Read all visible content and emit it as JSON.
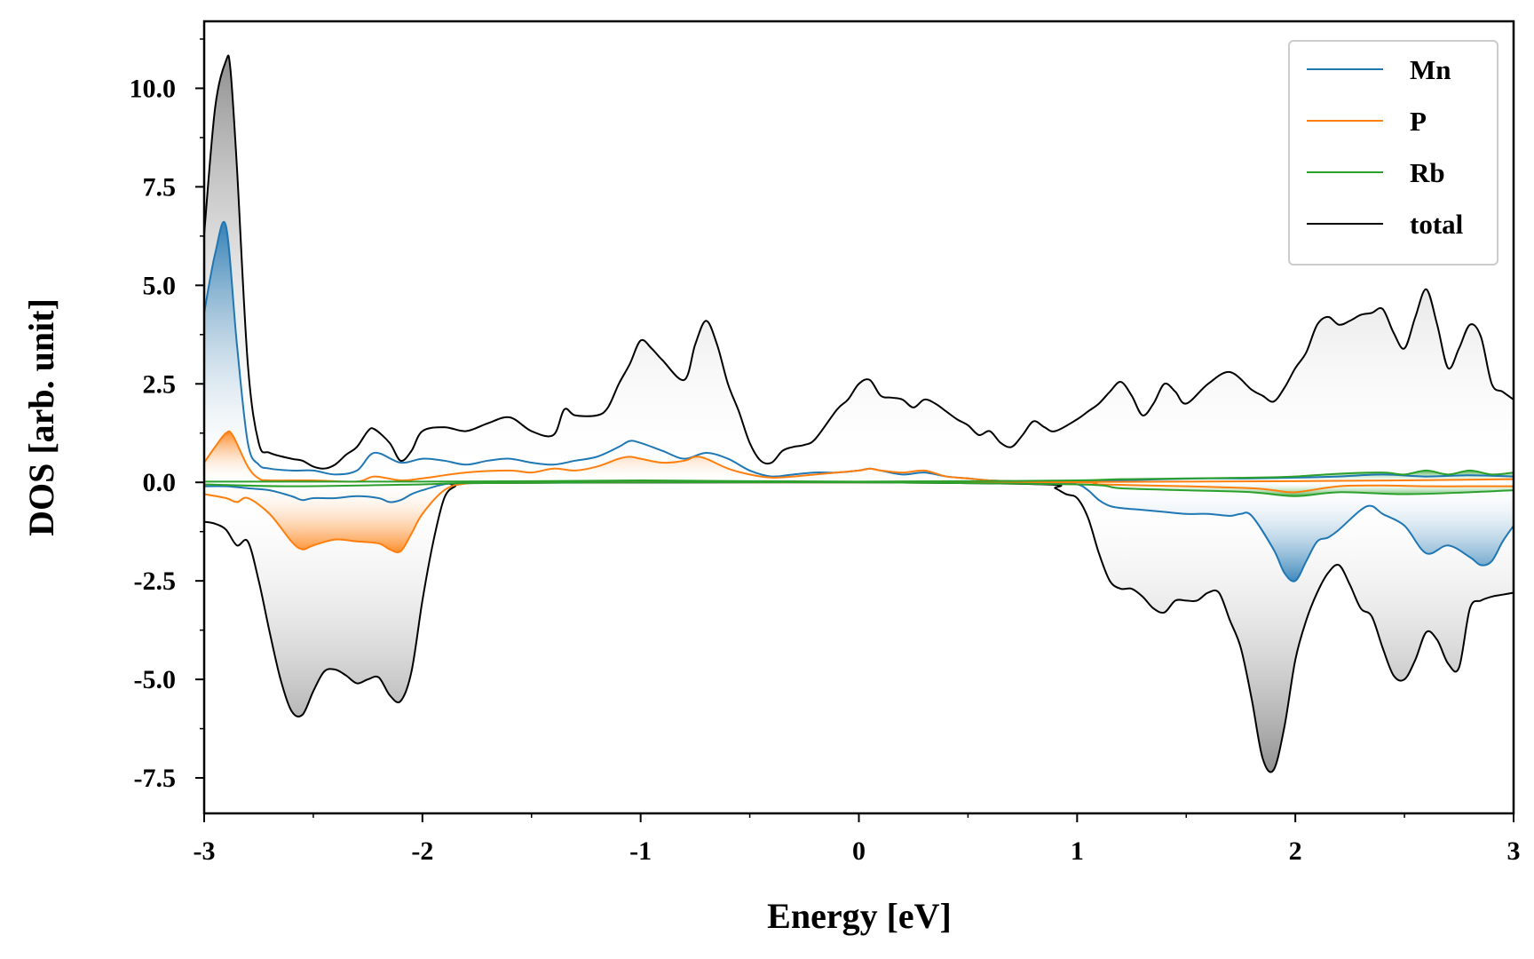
{
  "chart_data": {
    "type": "line",
    "xlabel": "Energy [eV]",
    "ylabel": "DOS [arb. unit]",
    "xlim": [
      -3,
      3
    ],
    "ylim": [
      -8.4,
      11.7
    ],
    "xticks": [
      -3,
      -2,
      -1,
      0,
      1,
      2,
      3
    ],
    "xtick_labels": [
      "-3",
      "-2",
      "-1",
      "0",
      "1",
      "2",
      "3"
    ],
    "yticks": [
      10.0,
      7.5,
      5.0,
      2.5,
      0.0,
      -2.5,
      -5.0,
      -7.5
    ],
    "ytick_labels": [
      "10.0",
      "7.5",
      "5.0",
      "2.5",
      "0.0",
      "-2.5",
      "-5.0",
      "-7.5"
    ],
    "grid": false,
    "legend_position": "top-right",
    "series": [
      {
        "name": "Mn",
        "color": "#1f77b4",
        "spin": "up",
        "x": [
          -3.0,
          -2.95,
          -2.9,
          -2.85,
          -2.8,
          -2.75,
          -2.7,
          -2.6,
          -2.5,
          -2.4,
          -2.3,
          -2.22,
          -2.1,
          -2.0,
          -1.9,
          -1.8,
          -1.7,
          -1.6,
          -1.5,
          -1.4,
          -1.3,
          -1.2,
          -1.1,
          -1.05,
          -1.0,
          -0.9,
          -0.8,
          -0.7,
          -0.6,
          -0.5,
          -0.4,
          -0.3,
          -0.2,
          -0.1,
          0.0,
          0.05,
          0.1,
          0.2,
          0.3,
          0.4,
          0.5,
          0.6,
          0.7,
          0.8,
          0.9,
          1.0,
          1.2,
          1.4,
          1.6,
          1.8,
          2.0,
          2.2,
          2.4,
          2.6,
          2.8,
          3.0
        ],
        "y": [
          4.3,
          5.8,
          6.5,
          3.5,
          1.0,
          0.45,
          0.35,
          0.3,
          0.3,
          0.2,
          0.3,
          0.75,
          0.5,
          0.6,
          0.55,
          0.45,
          0.55,
          0.6,
          0.5,
          0.45,
          0.55,
          0.65,
          0.9,
          1.05,
          1.0,
          0.8,
          0.6,
          0.75,
          0.6,
          0.3,
          0.15,
          0.2,
          0.25,
          0.25,
          0.3,
          0.35,
          0.3,
          0.2,
          0.25,
          0.15,
          0.1,
          0.05,
          0.03,
          0.02,
          0.02,
          0.02,
          0.05,
          0.08,
          0.1,
          0.1,
          0.12,
          0.15,
          0.2,
          0.15,
          0.18,
          0.15
        ]
      },
      {
        "name": "Mn",
        "color": "#1f77b4",
        "spin": "down",
        "x": [
          -3.0,
          -2.9,
          -2.8,
          -2.7,
          -2.6,
          -2.55,
          -2.5,
          -2.4,
          -2.3,
          -2.2,
          -2.15,
          -2.1,
          -2.05,
          -2.0,
          -1.9,
          -1.8,
          -1.6,
          -1.0,
          0.0,
          0.5,
          0.9,
          1.0,
          1.05,
          1.1,
          1.15,
          1.2,
          1.3,
          1.4,
          1.5,
          1.6,
          1.7,
          1.75,
          1.8,
          1.9,
          1.95,
          2.0,
          2.05,
          2.1,
          2.15,
          2.2,
          2.3,
          2.35,
          2.4,
          2.5,
          2.6,
          2.7,
          2.8,
          2.85,
          2.9,
          2.95,
          3.0
        ],
        "y": [
          -0.1,
          -0.1,
          -0.15,
          -0.2,
          -0.35,
          -0.45,
          -0.4,
          -0.4,
          -0.35,
          -0.4,
          -0.5,
          -0.45,
          -0.3,
          -0.2,
          -0.05,
          -0.02,
          -0.01,
          -0.01,
          0.0,
          0.0,
          -0.02,
          -0.05,
          -0.2,
          -0.45,
          -0.6,
          -0.65,
          -0.7,
          -0.75,
          -0.8,
          -0.8,
          -0.85,
          -0.8,
          -0.85,
          -1.7,
          -2.3,
          -2.5,
          -2.0,
          -1.5,
          -1.4,
          -1.2,
          -0.7,
          -0.6,
          -0.8,
          -1.1,
          -1.8,
          -1.6,
          -1.9,
          -2.1,
          -2.0,
          -1.5,
          -1.1
        ]
      },
      {
        "name": "P",
        "color": "#ff7f0e",
        "spin": "up",
        "x": [
          -3.0,
          -2.95,
          -2.9,
          -2.87,
          -2.8,
          -2.75,
          -2.7,
          -2.5,
          -2.3,
          -2.22,
          -2.1,
          -2.0,
          -1.8,
          -1.6,
          -1.5,
          -1.4,
          -1.3,
          -1.2,
          -1.1,
          -1.05,
          -1.0,
          -0.9,
          -0.8,
          -0.75,
          -0.7,
          -0.6,
          -0.5,
          -0.4,
          -0.3,
          -0.2,
          -0.1,
          0.0,
          0.05,
          0.1,
          0.2,
          0.3,
          0.4,
          0.5,
          0.6,
          0.7,
          0.8,
          1.0,
          1.5,
          2.0,
          2.5,
          3.0
        ],
        "y": [
          0.5,
          0.9,
          1.25,
          1.2,
          0.4,
          0.1,
          0.05,
          0.05,
          0.02,
          0.15,
          0.05,
          0.1,
          0.25,
          0.3,
          0.25,
          0.35,
          0.3,
          0.4,
          0.6,
          0.65,
          0.6,
          0.5,
          0.55,
          0.65,
          0.6,
          0.35,
          0.2,
          0.12,
          0.15,
          0.2,
          0.25,
          0.3,
          0.35,
          0.3,
          0.25,
          0.3,
          0.15,
          0.1,
          0.05,
          0.03,
          0.02,
          0.01,
          0.02,
          0.03,
          0.05,
          0.08
        ]
      },
      {
        "name": "P",
        "color": "#ff7f0e",
        "spin": "down",
        "x": [
          -3.0,
          -2.9,
          -2.85,
          -2.8,
          -2.7,
          -2.6,
          -2.55,
          -2.5,
          -2.4,
          -2.3,
          -2.2,
          -2.15,
          -2.1,
          -2.05,
          -2.0,
          -1.9,
          -1.8,
          -1.6,
          -1.0,
          0.0,
          1.0,
          1.1,
          1.5,
          1.8,
          1.9,
          2.0,
          2.2,
          2.4,
          2.6,
          2.8,
          3.0
        ],
        "y": [
          -0.3,
          -0.4,
          -0.5,
          -0.4,
          -0.8,
          -1.5,
          -1.7,
          -1.6,
          -1.45,
          -1.5,
          -1.55,
          -1.7,
          -1.75,
          -1.3,
          -0.8,
          -0.2,
          -0.03,
          -0.01,
          0.0,
          0.0,
          0.0,
          -0.05,
          -0.1,
          -0.15,
          -0.2,
          -0.25,
          -0.1,
          -0.08,
          -0.1,
          -0.1,
          -0.1
        ]
      },
      {
        "name": "Rb",
        "color": "#2ca02c",
        "spin": "up",
        "x": [
          -3.0,
          -2.5,
          -2.0,
          -1.5,
          -1.0,
          -0.5,
          0.0,
          0.5,
          1.0,
          1.2,
          1.5,
          1.8,
          2.0,
          2.2,
          2.4,
          2.5,
          2.6,
          2.7,
          2.8,
          2.9,
          3.0
        ],
        "y": [
          0.02,
          0.02,
          0.02,
          0.03,
          0.05,
          0.03,
          0.02,
          0.03,
          0.05,
          0.08,
          0.1,
          0.12,
          0.15,
          0.22,
          0.25,
          0.2,
          0.3,
          0.2,
          0.3,
          0.2,
          0.25
        ]
      },
      {
        "name": "Rb",
        "color": "#2ca02c",
        "spin": "down",
        "x": [
          -3.0,
          -2.6,
          -2.0,
          -1.8,
          -1.0,
          0.0,
          1.0,
          1.2,
          1.5,
          1.8,
          2.0,
          2.2,
          2.5,
          2.8,
          3.0
        ],
        "y": [
          -0.05,
          -0.1,
          -0.05,
          -0.02,
          0.0,
          0.0,
          -0.05,
          -0.15,
          -0.2,
          -0.25,
          -0.35,
          -0.25,
          -0.3,
          -0.25,
          -0.2
        ]
      },
      {
        "name": "total",
        "color": "#000000",
        "spin": "up",
        "x": [
          -3.0,
          -2.95,
          -2.9,
          -2.88,
          -2.85,
          -2.8,
          -2.75,
          -2.7,
          -2.6,
          -2.55,
          -2.5,
          -2.45,
          -2.4,
          -2.35,
          -2.3,
          -2.25,
          -2.22,
          -2.15,
          -2.1,
          -2.05,
          -2.0,
          -1.9,
          -1.8,
          -1.7,
          -1.6,
          -1.5,
          -1.4,
          -1.35,
          -1.3,
          -1.2,
          -1.15,
          -1.1,
          -1.05,
          -1.0,
          -0.95,
          -0.9,
          -0.8,
          -0.75,
          -0.7,
          -0.65,
          -0.6,
          -0.55,
          -0.5,
          -0.45,
          -0.4,
          -0.35,
          -0.3,
          -0.25,
          -0.2,
          -0.1,
          -0.05,
          0.0,
          0.05,
          0.1,
          0.15,
          0.2,
          0.25,
          0.3,
          0.35,
          0.4,
          0.45,
          0.5,
          0.55,
          0.6,
          0.65,
          0.7,
          0.75,
          0.8,
          0.85,
          0.9,
          1.0,
          1.05,
          1.1,
          1.15,
          1.2,
          1.25,
          1.3,
          1.35,
          1.4,
          1.45,
          1.5,
          1.6,
          1.7,
          1.8,
          1.85,
          1.9,
          1.95,
          2.0,
          2.05,
          2.1,
          2.15,
          2.2,
          2.25,
          2.3,
          2.35,
          2.4,
          2.45,
          2.5,
          2.55,
          2.6,
          2.65,
          2.7,
          2.75,
          2.8,
          2.85,
          2.9,
          2.95,
          3.0
        ],
        "y": [
          6.3,
          9.5,
          10.7,
          10.5,
          8.0,
          3.0,
          1.0,
          0.75,
          0.6,
          0.55,
          0.4,
          0.35,
          0.45,
          0.7,
          0.9,
          1.3,
          1.35,
          1.0,
          0.55,
          0.8,
          1.3,
          1.4,
          1.3,
          1.5,
          1.65,
          1.3,
          1.2,
          1.85,
          1.7,
          1.7,
          1.9,
          2.5,
          3.0,
          3.6,
          3.4,
          3.1,
          2.6,
          3.5,
          4.1,
          3.5,
          2.5,
          1.8,
          1.0,
          0.55,
          0.5,
          0.8,
          0.9,
          0.95,
          1.1,
          1.85,
          2.1,
          2.5,
          2.6,
          2.2,
          2.15,
          2.1,
          1.9,
          2.1,
          2.0,
          1.8,
          1.6,
          1.45,
          1.2,
          1.3,
          1.0,
          0.9,
          1.2,
          1.55,
          1.4,
          1.3,
          1.6,
          1.8,
          2.0,
          2.3,
          2.55,
          2.2,
          1.7,
          2.0,
          2.5,
          2.3,
          2.0,
          2.5,
          2.8,
          2.35,
          2.2,
          2.05,
          2.4,
          2.9,
          3.3,
          4.0,
          4.2,
          4.0,
          4.1,
          4.25,
          4.3,
          4.4,
          3.8,
          3.4,
          4.2,
          4.9,
          4.0,
          2.9,
          3.4,
          4.0,
          3.7,
          2.5,
          2.3,
          2.1
        ]
      },
      {
        "name": "total",
        "color": "#000000",
        "spin": "down",
        "x": [
          -3.0,
          -2.95,
          -2.9,
          -2.85,
          -2.8,
          -2.75,
          -2.7,
          -2.65,
          -2.6,
          -2.55,
          -2.5,
          -2.45,
          -2.4,
          -2.35,
          -2.3,
          -2.25,
          -2.2,
          -2.15,
          -2.1,
          -2.05,
          -2.0,
          -1.95,
          -1.9,
          -1.85,
          -1.8,
          -1.0,
          0.0,
          0.85,
          0.9,
          0.95,
          1.0,
          1.05,
          1.1,
          1.15,
          1.2,
          1.25,
          1.3,
          1.35,
          1.4,
          1.45,
          1.5,
          1.55,
          1.6,
          1.65,
          1.7,
          1.75,
          1.8,
          1.85,
          1.9,
          1.95,
          2.0,
          2.05,
          2.1,
          2.15,
          2.2,
          2.25,
          2.3,
          2.35,
          2.4,
          2.45,
          2.5,
          2.55,
          2.6,
          2.65,
          2.7,
          2.75,
          2.8,
          2.85,
          2.9,
          2.95,
          3.0
        ],
        "y": [
          -1.0,
          -1.05,
          -1.2,
          -1.6,
          -1.5,
          -2.5,
          -3.8,
          -5.0,
          -5.8,
          -5.9,
          -5.3,
          -4.8,
          -4.75,
          -4.9,
          -5.1,
          -5.0,
          -4.95,
          -5.4,
          -5.55,
          -4.8,
          -3.0,
          -1.5,
          -0.4,
          -0.1,
          -0.02,
          0.0,
          0.0,
          -0.05,
          -0.15,
          -0.3,
          -0.4,
          -0.9,
          -1.8,
          -2.5,
          -2.7,
          -2.7,
          -2.9,
          -3.2,
          -3.3,
          -3.0,
          -3.0,
          -3.0,
          -2.8,
          -2.8,
          -3.5,
          -4.2,
          -5.5,
          -7.0,
          -7.3,
          -6.2,
          -4.5,
          -3.5,
          -2.8,
          -2.3,
          -2.1,
          -2.6,
          -3.2,
          -3.4,
          -4.2,
          -4.9,
          -5.0,
          -4.5,
          -3.8,
          -4.0,
          -4.6,
          -4.7,
          -3.2,
          -3.0,
          -2.9,
          -2.85,
          -2.8
        ]
      }
    ],
    "legend": [
      {
        "name": "Mn",
        "color": "#1f77b4"
      },
      {
        "name": "P",
        "color": "#ff7f0e"
      },
      {
        "name": "Rb",
        "color": "#2ca02c"
      },
      {
        "name": "total",
        "color": "#000000"
      }
    ]
  }
}
